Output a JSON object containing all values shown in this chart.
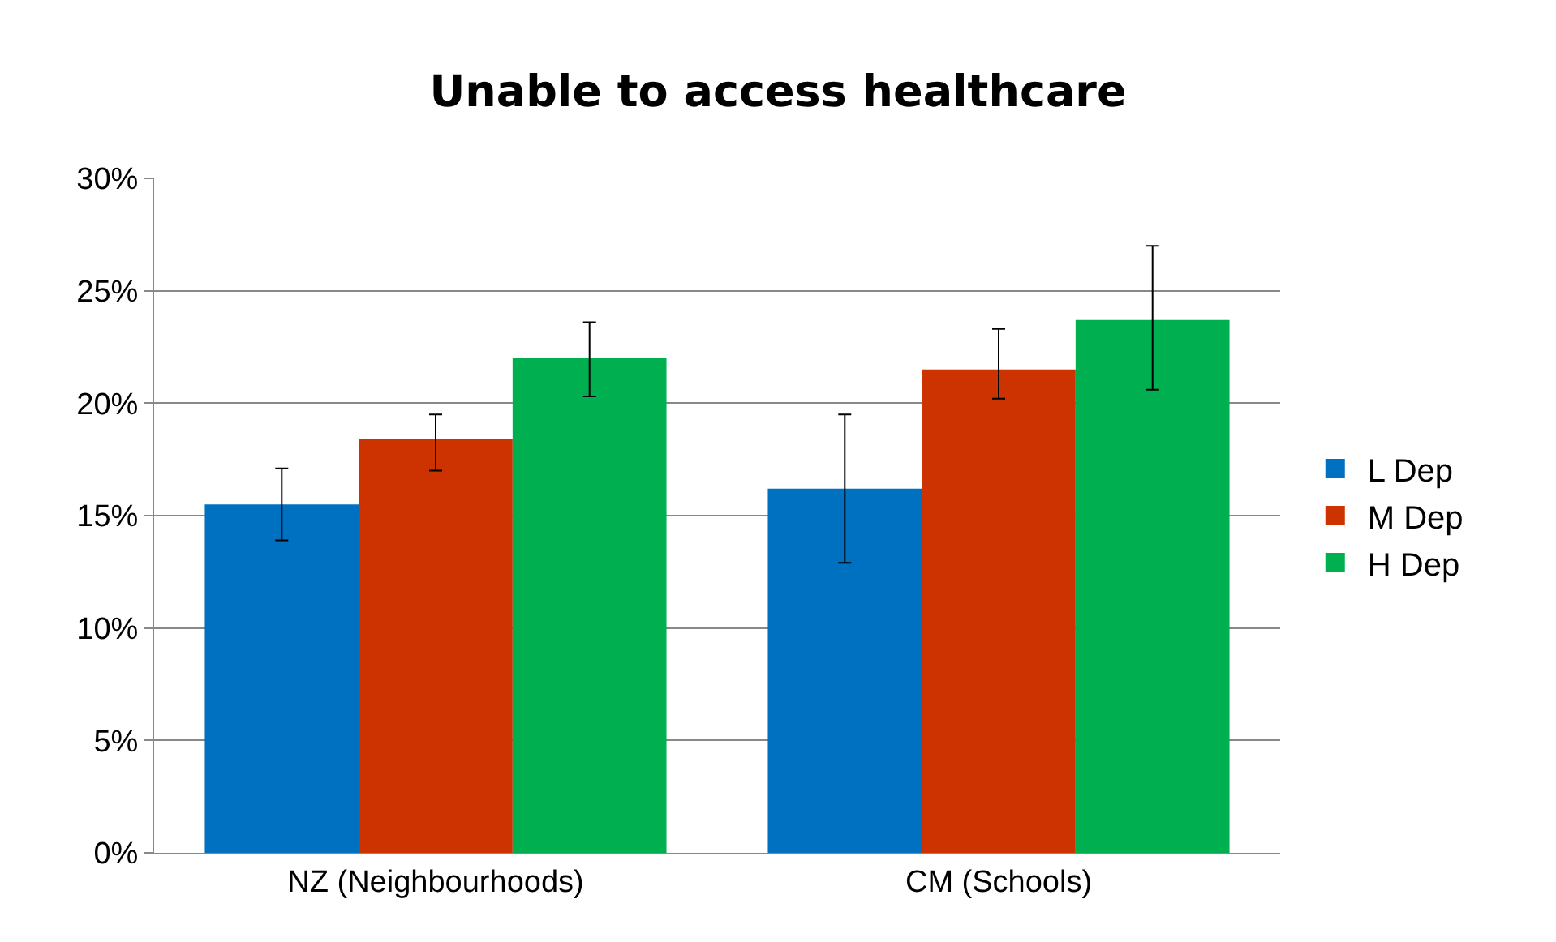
{
  "chart_data": {
    "type": "bar",
    "title": "Unable to access healthcare",
    "categories": [
      "NZ (Neighbourhoods)",
      "CM (Schools)"
    ],
    "series": [
      {
        "name": "L Dep",
        "color": "#0070c0",
        "values": [
          15.5,
          16.2
        ],
        "errors": [
          [
            13.9,
            17.1
          ],
          [
            12.9,
            19.5
          ]
        ]
      },
      {
        "name": "M Dep",
        "color": "#cc3300",
        "values": [
          18.4,
          21.5
        ],
        "errors": [
          [
            17.0,
            19.5
          ],
          [
            20.2,
            23.3
          ]
        ]
      },
      {
        "name": "H Dep",
        "color": "#00b050",
        "values": [
          22.0,
          23.7
        ],
        "errors": [
          [
            20.3,
            23.6
          ],
          [
            20.6,
            27.0
          ]
        ]
      }
    ],
    "ylim": [
      0,
      30
    ],
    "yticks": [
      {
        "value": 0,
        "label": "0%"
      },
      {
        "value": 5,
        "label": "5%"
      },
      {
        "value": 10,
        "label": "10%"
      },
      {
        "value": 15,
        "label": "15%"
      },
      {
        "value": 20,
        "label": "20%"
      },
      {
        "value": 25,
        "label": "25%"
      },
      {
        "value": 30,
        "label": "30%"
      }
    ],
    "grid": "y",
    "legend": "right"
  }
}
